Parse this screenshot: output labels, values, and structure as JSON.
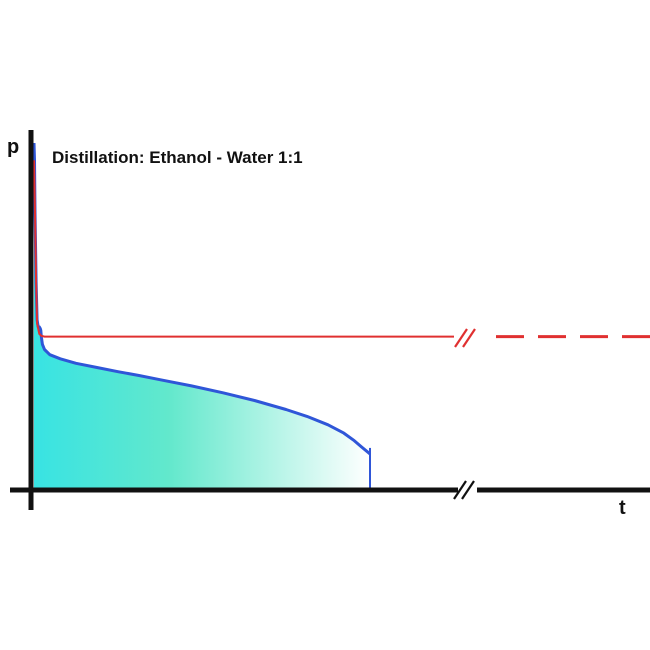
{
  "colors": {
    "pressure_line": "#2f56d8",
    "reference_line": "#e03030",
    "fill_start": "#38e3e3",
    "fill_mid": "#62e8cc",
    "fill_end": "#ffffff",
    "axis": "#111111"
  },
  "chart_data": {
    "type": "line",
    "title": "Distillation: Ethanol - Water 1:1",
    "xlabel": "t",
    "ylabel": "p",
    "axis_break": true,
    "series": [
      {
        "style": "solid",
        "color": "#2f56d8",
        "filled": true,
        "x": [
          0,
          0.5,
          1,
          2,
          3,
          4,
          5,
          6,
          6.5,
          7,
          8,
          10,
          15,
          25,
          40,
          60,
          80,
          100,
          120,
          150,
          180,
          210,
          240,
          260,
          280,
          295,
          305,
          312,
          318,
          320
        ],
        "y": [
          100,
          95,
          80,
          60,
          49,
          47,
          47,
          46.5,
          46,
          44,
          42,
          40.5,
          39,
          37.8,
          36.5,
          35.3,
          34.1,
          33,
          31.8,
          30,
          28,
          25.8,
          23.2,
          21.2,
          18.8,
          16.4,
          14.2,
          12.4,
          10.9,
          10.4
        ]
      },
      {
        "style": "solid",
        "color": "#e03030",
        "filled": false,
        "x": [
          0,
          1,
          2,
          3,
          5,
          7,
          10,
          20,
          50,
          100,
          200,
          300,
          400
        ],
        "y": [
          95,
          80,
          60,
          48,
          45,
          44.4,
          44.2,
          44.2,
          44.2,
          44.2,
          44.2,
          44.2,
          44.2
        ]
      },
      {
        "style": "dashed",
        "color": "#e03030",
        "filled": false,
        "x": [
          440,
          600
        ],
        "y": [
          44.2,
          44.2
        ]
      }
    ],
    "xlim": [
      0,
      600
    ],
    "ylim": [
      0,
      100
    ],
    "grid": false,
    "legend": "none"
  }
}
